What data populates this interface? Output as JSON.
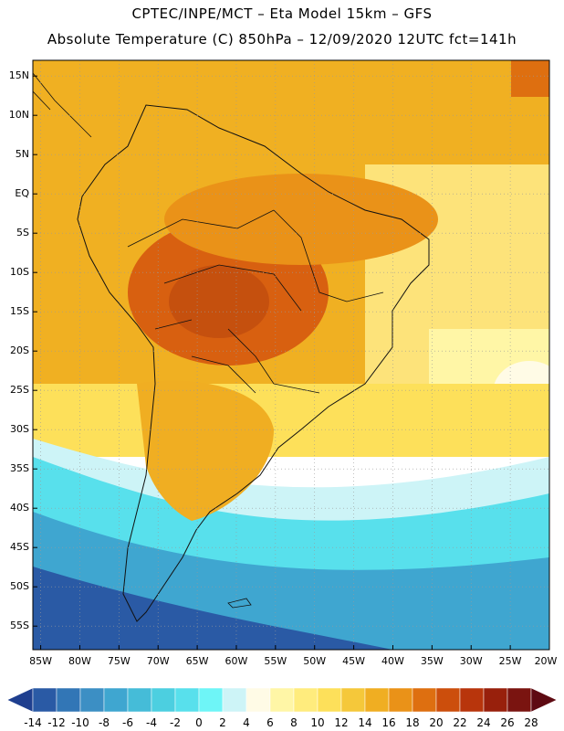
{
  "header": {
    "line1": "CPTEC/INPE/MCT –  Eta Model 15km – GFS",
    "line2": "Absolute Temperature (C) 850hPa – 12/09/2020 12UTC fct=141h"
  },
  "map": {
    "lat_range": [
      -58,
      17
    ],
    "lon_range": [
      -86,
      -20
    ],
    "lat_ticks": [
      "15N",
      "10N",
      "5N",
      "EQ",
      "5S",
      "10S",
      "15S",
      "20S",
      "25S",
      "30S",
      "35S",
      "40S",
      "45S",
      "50S",
      "55S"
    ],
    "lat_values": [
      15,
      10,
      5,
      0,
      -5,
      -10,
      -15,
      -20,
      -25,
      -30,
      -35,
      -40,
      -45,
      -50,
      -55
    ],
    "lon_ticks": [
      "85W",
      "80W",
      "75W",
      "70W",
      "65W",
      "60W",
      "55W",
      "50W",
      "45W",
      "40W",
      "35W",
      "30W",
      "25W",
      "20W"
    ],
    "lon_values": [
      -85,
      -80,
      -75,
      -70,
      -65,
      -60,
      -55,
      -50,
      -45,
      -40,
      -35,
      -30,
      -25,
      -20
    ],
    "grid": true
  },
  "colorbar": {
    "labels": [
      "-14",
      "-12",
      "-10",
      "-8",
      "-6",
      "-4",
      "-2",
      "0",
      "2",
      "4",
      "6",
      "8",
      "10",
      "12",
      "14",
      "16",
      "18",
      "20",
      "22",
      "24",
      "26",
      "28"
    ],
    "colors": [
      "#1f3f8f",
      "#2a5aa5",
      "#3276b6",
      "#3c8fc4",
      "#3fa6d0",
      "#45bcd8",
      "#4ccfe0",
      "#58e0ec",
      "#6ef5f7",
      "#cdf4f7",
      "#fffbe6",
      "#fff6a6",
      "#ffec7d",
      "#fde05a",
      "#f5c83a",
      "#f0ae22",
      "#ea9218",
      "#de6f10",
      "#cc4e0c",
      "#b8350c",
      "#98200c",
      "#7a1410",
      "#5e0a12"
    ]
  }
}
